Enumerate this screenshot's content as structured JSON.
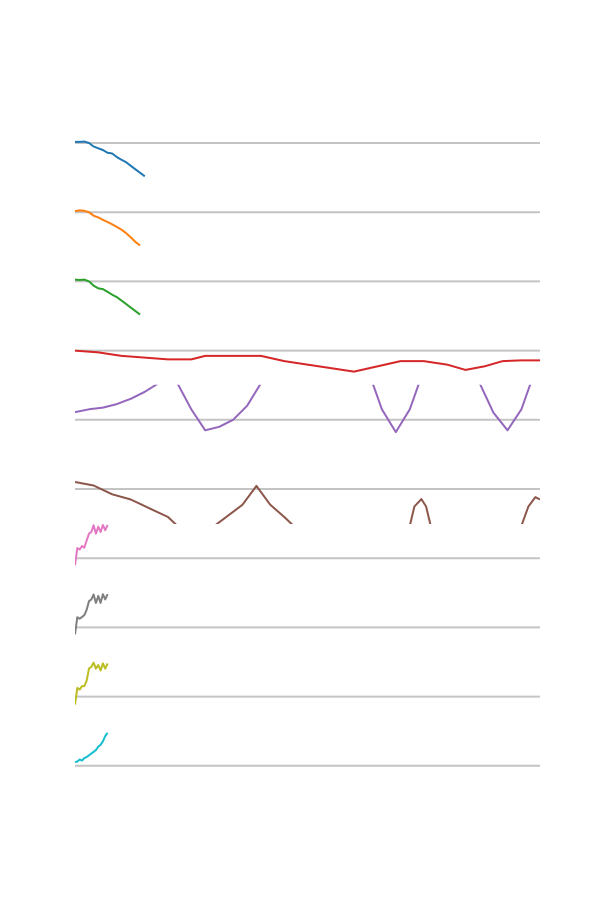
{
  "chart_data": [
    {
      "type": "line",
      "color": "#1f77b4",
      "xlim": [
        0,
        100
      ],
      "ylim": [
        -1,
        1
      ],
      "yticks": [
        0
      ],
      "grid": true,
      "x": [
        0,
        1,
        2,
        3,
        4,
        5,
        6,
        7,
        8,
        9,
        10,
        11,
        12,
        13,
        14,
        15
      ],
      "values": [
        0.03,
        0.03,
        0.04,
        0,
        -0.1,
        -0.15,
        -0.2,
        -0.28,
        -0.3,
        -0.4,
        -0.48,
        -0.55,
        -0.65,
        -0.75,
        -0.85,
        -0.95
      ]
    },
    {
      "type": "line",
      "color": "#ff7f0e",
      "xlim": [
        0,
        100
      ],
      "ylim": [
        -1,
        1
      ],
      "yticks": [
        0
      ],
      "grid": true,
      "x": [
        0,
        1,
        2,
        3,
        4,
        5,
        6,
        7,
        8,
        9,
        10,
        11,
        12,
        13,
        14
      ],
      "values": [
        0.03,
        0.05,
        0.04,
        0,
        -0.1,
        -0.15,
        -0.22,
        -0.28,
        -0.35,
        -0.42,
        -0.5,
        -0.6,
        -0.72,
        -0.85,
        -0.95
      ]
    },
    {
      "type": "line",
      "color": "#2ca02c",
      "xlim": [
        0,
        100
      ],
      "ylim": [
        -1,
        1
      ],
      "yticks": [
        0
      ],
      "grid": true,
      "x": [
        0,
        1,
        2,
        3,
        4,
        5,
        6,
        7,
        8,
        9,
        10,
        11,
        12,
        13,
        14
      ],
      "values": [
        0.05,
        0.04,
        0.05,
        0,
        -0.12,
        -0.2,
        -0.22,
        -0.3,
        -0.38,
        -0.45,
        -0.55,
        -0.65,
        -0.75,
        -0.85,
        -0.95
      ]
    },
    {
      "type": "line",
      "color": "#d62728",
      "xlim": [
        0,
        100
      ],
      "ylim": [
        -1,
        1
      ],
      "yticks": [
        0
      ],
      "grid": true,
      "x": [
        0,
        5,
        10,
        15,
        20,
        25,
        28,
        35,
        40,
        45,
        50,
        55,
        60,
        65,
        70,
        75,
        80,
        84,
        88,
        92,
        96,
        100
      ],
      "values": [
        0,
        -0.05,
        -0.15,
        -0.2,
        -0.25,
        -0.25,
        -0.15,
        -0.15,
        -0.15,
        -0.3,
        -0.4,
        -0.5,
        -0.6,
        -0.45,
        -0.3,
        -0.3,
        -0.4,
        -0.55,
        -0.45,
        -0.3,
        -0.28,
        -0.28
      ]
    },
    {
      "type": "line",
      "color": "#9467bd",
      "xlim": [
        0,
        100
      ],
      "ylim": [
        -1,
        1
      ],
      "yticks": [
        0
      ],
      "grid": true,
      "x": [
        0,
        3,
        6,
        9,
        12,
        15,
        18,
        22,
        25,
        28,
        31,
        34,
        37,
        40,
        64,
        66,
        69,
        72,
        74,
        87,
        90,
        93,
        96,
        98,
        100
      ],
      "values": [
        0.22,
        0.3,
        0.35,
        0.45,
        0.6,
        0.8,
        1.05,
        1.05,
        0.3,
        -0.3,
        -0.2,
        0,
        0.4,
        1.05,
        1.05,
        0.3,
        -0.35,
        0.3,
        1.05,
        1.05,
        0.2,
        -0.3,
        0.3,
        1.05,
        1.05
      ]
    },
    {
      "type": "line",
      "color": "#8c564b",
      "xlim": [
        0,
        100
      ],
      "ylim": [
        -1,
        1
      ],
      "yticks": [
        0
      ],
      "grid": true,
      "x": [
        0,
        4,
        8,
        12,
        16,
        20,
        22,
        30,
        33,
        36,
        39,
        42,
        45,
        47,
        72,
        73,
        74.5,
        75.5,
        76.5,
        96,
        97.5,
        99,
        100
      ],
      "values": [
        0.2,
        0.1,
        -0.15,
        -0.3,
        -0.55,
        -0.8,
        -1.05,
        -1.05,
        -0.75,
        -0.45,
        0.09,
        -0.45,
        -0.8,
        -1.05,
        -1.05,
        -0.5,
        -0.29,
        -0.5,
        -1.05,
        -1.05,
        -0.5,
        -0.23,
        -0.3
      ]
    },
    {
      "type": "line",
      "color": "#e377c2",
      "xlim": [
        0,
        100
      ],
      "ylim": [
        -1,
        1
      ],
      "yticks": [
        0
      ],
      "grid": true,
      "x": [
        0,
        0.5,
        1,
        1.5,
        2,
        2.5,
        3,
        3.5,
        4,
        4.5,
        5,
        5.5,
        6,
        6.5,
        7
      ],
      "values": [
        -0.2,
        0.29,
        0.25,
        0.35,
        0.3,
        0.5,
        0.7,
        0.75,
        0.94,
        0.7,
        0.9,
        0.75,
        0.95,
        0.8,
        0.95
      ]
    },
    {
      "type": "line",
      "color": "#7f7f7f",
      "xlim": [
        0,
        100
      ],
      "ylim": [
        -1,
        1
      ],
      "yticks": [
        0
      ],
      "grid": true,
      "x": [
        0,
        0.5,
        1,
        1.5,
        2,
        2.5,
        3,
        3.5,
        4,
        4.5,
        5,
        5.5,
        6,
        6.5,
        7
      ],
      "values": [
        -0.2,
        0.29,
        0.25,
        0.3,
        0.35,
        0.5,
        0.75,
        0.8,
        0.94,
        0.7,
        0.9,
        0.7,
        0.95,
        0.8,
        0.95
      ]
    },
    {
      "type": "line",
      "color": "#bcbd22",
      "xlim": [
        0,
        100
      ],
      "ylim": [
        -1,
        1
      ],
      "yticks": [
        0
      ],
      "grid": true,
      "x": [
        0,
        0.5,
        1,
        1.5,
        2,
        2.5,
        3,
        3.5,
        4,
        4.5,
        5,
        5.5,
        6,
        6.5,
        7
      ],
      "values": [
        -0.23,
        0.25,
        0.2,
        0.3,
        0.3,
        0.45,
        0.8,
        0.85,
        0.97,
        0.8,
        0.9,
        0.75,
        0.95,
        0.8,
        0.95
      ]
    },
    {
      "type": "line",
      "color": "#17becf",
      "xlim": [
        0,
        100
      ],
      "ylim": [
        -1,
        1
      ],
      "yticks": [
        0
      ],
      "grid": true,
      "x": [
        0,
        0.5,
        1,
        1.5,
        2,
        2.5,
        3,
        3.5,
        4,
        4.5,
        5,
        5.5,
        6,
        6.5,
        7
      ],
      "values": [
        0.11,
        0.12,
        0.18,
        0.15,
        0.22,
        0.25,
        0.3,
        0.35,
        0.4,
        0.45,
        0.55,
        0.6,
        0.7,
        0.85,
        0.94
      ]
    }
  ]
}
